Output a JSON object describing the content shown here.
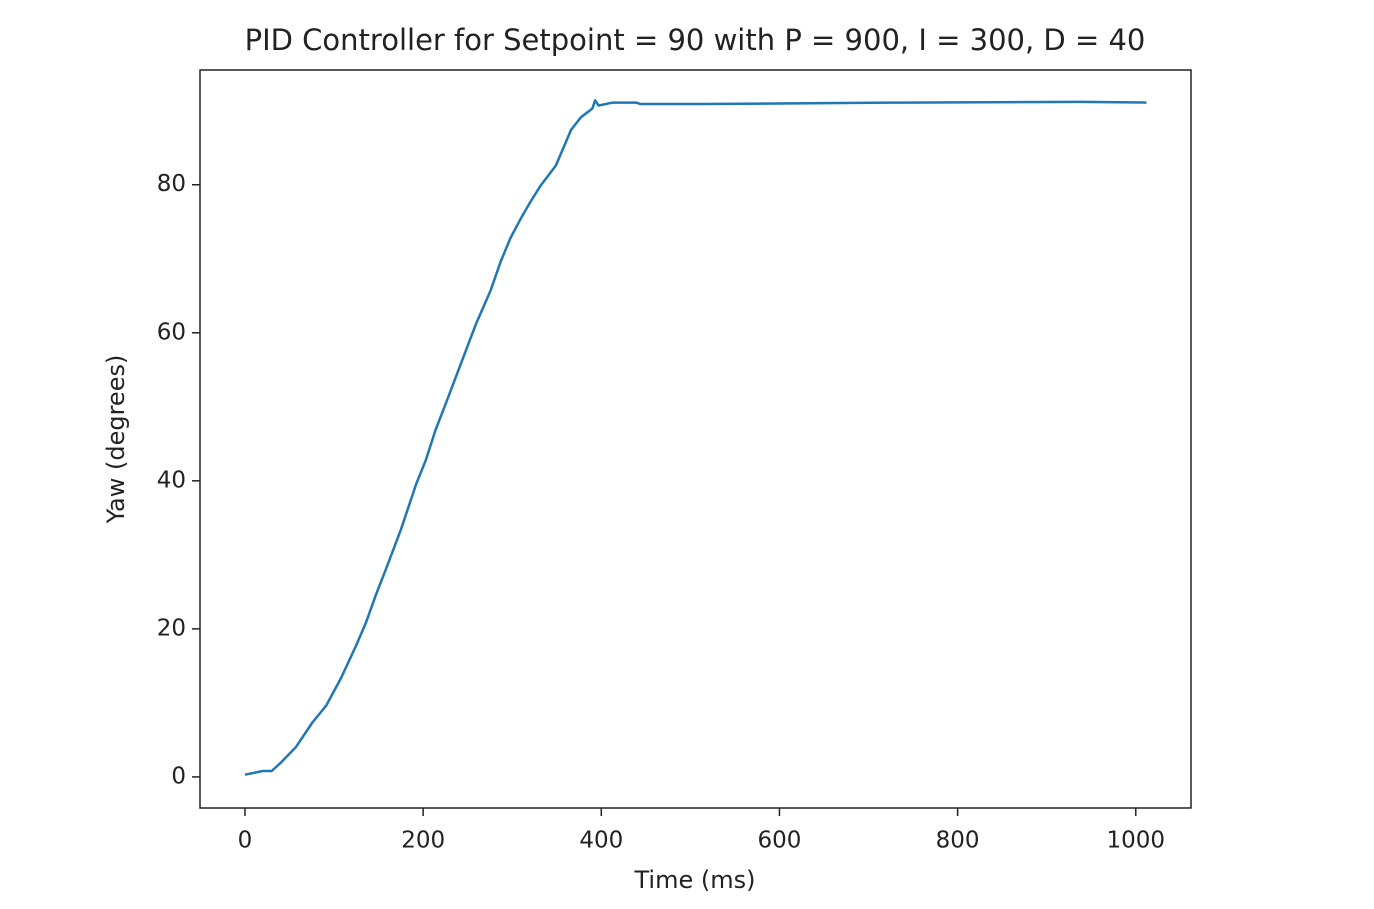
{
  "chart_data": {
    "type": "line",
    "title": "PID Controller for Setpoint = 90 with P = 900, I = 300, D = 40",
    "x_label": "Time (ms)",
    "y_label": "Yaw (degrees)",
    "x": [
      0,
      20,
      30,
      40,
      57,
      76,
      91,
      108,
      125,
      136,
      147,
      158,
      175,
      192,
      203,
      214,
      225,
      242,
      259,
      276,
      287,
      298,
      309,
      320,
      332,
      349,
      366,
      377,
      390,
      393,
      397,
      413,
      439,
      444,
      511,
      736,
      938,
      1012
    ],
    "series": [
      {
        "name": "Yaw",
        "color": "#1f77b4",
        "values": [
          0.3,
          0.8,
          0.8,
          1.9,
          4.0,
          7.4,
          9.6,
          13.4,
          17.8,
          20.9,
          24.6,
          28.0,
          33.4,
          39.5,
          42.8,
          46.9,
          50.3,
          55.7,
          61.1,
          65.8,
          69.6,
          72.8,
          75.3,
          77.6,
          79.9,
          82.6,
          87.4,
          89.1,
          90.3,
          91.4,
          90.7,
          91.1,
          91.1,
          90.9,
          90.9,
          91.1,
          91.2,
          91.1
        ]
      }
    ],
    "xlim": [
      -50.5,
      1062
    ],
    "ylim": [
      -4.2,
      95.5
    ],
    "xticks": [
      0,
      200,
      400,
      600,
      800,
      1000
    ],
    "yticks": [
      0,
      20,
      40,
      60,
      80
    ],
    "grid": false
  }
}
